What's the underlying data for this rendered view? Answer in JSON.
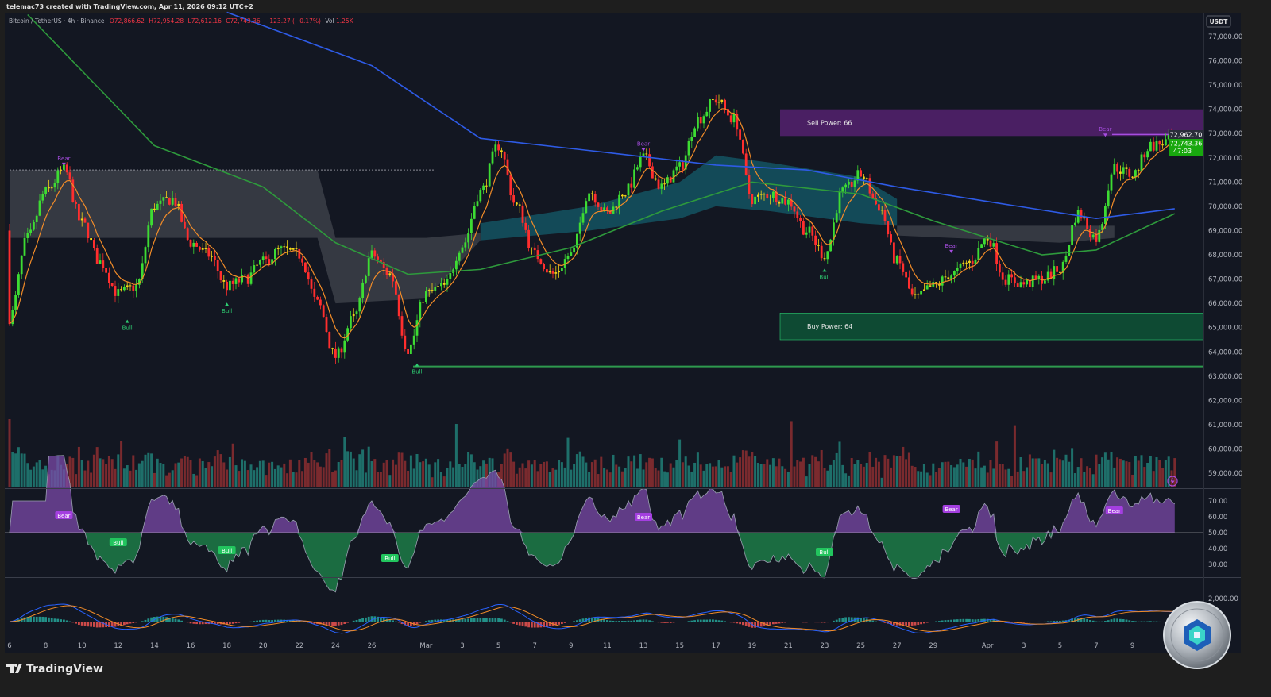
{
  "header": {
    "credit": "telemac73 created with TradingView.com, Apr 11, 2026 09:12 UTC+2",
    "symbol": "Bitcoin / TetherUS · 4h · Binance",
    "open": "O72,866.62",
    "high": "H72,954.28",
    "low": "L72,612.16",
    "close": "C72,743.36",
    "change": "−123.27 (−0.17%)",
    "volume_label": "Vol",
    "volume": "1.25K",
    "currency": "USDT"
  },
  "price_tags": {
    "prev": "72,962.70",
    "last": "72,743.36",
    "countdown": "47:03"
  },
  "zones": {
    "sell_label": "Sell Power: 66",
    "buy_label": "Buy Power: 64",
    "sell_color": "#4a1f63",
    "buy_color": "#0e4a33"
  },
  "signals": {
    "bear": "Bear",
    "bull": "Bull"
  },
  "brand": {
    "name": "TradingView"
  },
  "colors": {
    "background": "#131722",
    "up": "#3ddc33",
    "down": "#ff2e2e",
    "neutral": "#f2d417",
    "ema": "#f28c28",
    "ma_blue": "#2e5be6",
    "ma_green": "#2e9a3c",
    "bear": "#a64de0",
    "bull": "#2ecc71"
  },
  "chart_data": [
    {
      "type": "candlestick",
      "title": "Bitcoin / TetherUS · 4h · Binance",
      "ylim": [
        58500,
        77800
      ],
      "yticks": [
        "77,000.00",
        "76,000.00",
        "75,000.00",
        "74,000.00",
        "73,000.00",
        "72,000.00",
        "71,000.00",
        "70,000.00",
        "69,000.00",
        "68,000.00",
        "67,000.00",
        "66,000.00",
        "65,000.00",
        "64,000.00",
        "63,000.00",
        "62,000.00",
        "61,000.00",
        "60,000.00",
        "59,000.00"
      ],
      "xticks": [
        {
          "date": "2026-02-06",
          "label": "6"
        },
        {
          "date": "2026-02-08",
          "label": "8"
        },
        {
          "date": "2026-02-10",
          "label": "10"
        },
        {
          "date": "2026-02-12",
          "label": "12"
        },
        {
          "date": "2026-02-14",
          "label": "14"
        },
        {
          "date": "2026-02-16",
          "label": "16"
        },
        {
          "date": "2026-02-18",
          "label": "18"
        },
        {
          "date": "2026-02-20",
          "label": "20"
        },
        {
          "date": "2026-02-22",
          "label": "22"
        },
        {
          "date": "2026-02-24",
          "label": "24"
        },
        {
          "date": "2026-02-26",
          "label": "26"
        },
        {
          "date": "2026-03-01",
          "label": "Mar"
        },
        {
          "date": "2026-03-03",
          "label": "3"
        },
        {
          "date": "2026-03-05",
          "label": "5"
        },
        {
          "date": "2026-03-07",
          "label": "7"
        },
        {
          "date": "2026-03-09",
          "label": "9"
        },
        {
          "date": "2026-03-11",
          "label": "11"
        },
        {
          "date": "2026-03-13",
          "label": "13"
        },
        {
          "date": "2026-03-15",
          "label": "15"
        },
        {
          "date": "2026-03-17",
          "label": "17"
        },
        {
          "date": "2026-03-19",
          "label": "19"
        },
        {
          "date": "2026-03-21",
          "label": "21"
        },
        {
          "date": "2026-03-23",
          "label": "23"
        },
        {
          "date": "2026-03-25",
          "label": "25"
        },
        {
          "date": "2026-03-27",
          "label": "27"
        },
        {
          "date": "2026-03-29",
          "label": "29"
        },
        {
          "date": "2026-04-01",
          "label": "Apr"
        },
        {
          "date": "2026-04-03",
          "label": "3"
        },
        {
          "date": "2026-04-05",
          "label": "5"
        },
        {
          "date": "2026-04-07",
          "label": "7"
        },
        {
          "date": "2026-04-09",
          "label": "9"
        }
      ],
      "close_series": [
        [
          "2026-02-06",
          65400
        ],
        [
          "2026-02-07",
          68700
        ],
        [
          "2026-02-08",
          70600
        ],
        [
          "2026-02-09",
          71500
        ],
        [
          "2026-02-10",
          69300
        ],
        [
          "2026-02-11",
          67700
        ],
        [
          "2026-02-12",
          66400
        ],
        [
          "2026-02-13",
          66700
        ],
        [
          "2026-02-14",
          70000
        ],
        [
          "2026-02-15",
          70300
        ],
        [
          "2026-02-16",
          68500
        ],
        [
          "2026-02-17",
          68000
        ],
        [
          "2026-02-18",
          66700
        ],
        [
          "2026-02-19",
          67000
        ],
        [
          "2026-02-20",
          67700
        ],
        [
          "2026-02-21",
          68200
        ],
        [
          "2026-02-22",
          68000
        ],
        [
          "2026-02-23",
          66000
        ],
        [
          "2026-02-24",
          63800
        ],
        [
          "2026-02-25",
          65400
        ],
        [
          "2026-02-26",
          68000
        ],
        [
          "2026-02-27",
          67200
        ],
        [
          "2026-02-28",
          64100
        ],
        [
          "2026-03-01",
          66400
        ],
        [
          "2026-03-02",
          66700
        ],
        [
          "2026-03-03",
          68400
        ],
        [
          "2026-03-04",
          70600
        ],
        [
          "2026-03-05",
          72500
        ],
        [
          "2026-03-06",
          70000
        ],
        [
          "2026-03-07",
          68000
        ],
        [
          "2026-03-08",
          67200
        ],
        [
          "2026-03-09",
          68000
        ],
        [
          "2026-03-10",
          70600
        ],
        [
          "2026-03-11",
          69700
        ],
        [
          "2026-03-12",
          70600
        ],
        [
          "2026-03-13",
          72000
        ],
        [
          "2026-03-14",
          70800
        ],
        [
          "2026-03-15",
          71600
        ],
        [
          "2026-03-16",
          73600
        ],
        [
          "2026-03-17",
          74400
        ],
        [
          "2026-03-18",
          73600
        ],
        [
          "2026-03-19",
          70300
        ],
        [
          "2026-03-20",
          70500
        ],
        [
          "2026-03-21",
          70200
        ],
        [
          "2026-03-22",
          69000
        ],
        [
          "2026-03-23",
          68000
        ],
        [
          "2026-03-24",
          70600
        ],
        [
          "2026-03-25",
          71300
        ],
        [
          "2026-03-26",
          70000
        ],
        [
          "2026-03-27",
          67700
        ],
        [
          "2026-03-28",
          66200
        ],
        [
          "2026-03-29",
          66700
        ],
        [
          "2026-03-30",
          67200
        ],
        [
          "2026-03-31",
          67700
        ],
        [
          "2026-04-01",
          68700
        ],
        [
          "2026-04-02",
          67000
        ],
        [
          "2026-04-03",
          66800
        ],
        [
          "2026-04-04",
          67000
        ],
        [
          "2026-04-05",
          67400
        ],
        [
          "2026-04-06",
          69700
        ],
        [
          "2026-04-07",
          68700
        ],
        [
          "2026-04-08",
          71600
        ],
        [
          "2026-04-09",
          71300
        ],
        [
          "2026-04-10",
          72500
        ],
        [
          "2026-04-11T09:00",
          72743.36
        ]
      ],
      "ma_blue": [
        [
          "2026-02-18",
          78000
        ],
        [
          "2026-02-26",
          75800
        ],
        [
          "2026-03-04",
          72800
        ],
        [
          "2026-03-10",
          72300
        ],
        [
          "2026-03-17",
          71700
        ],
        [
          "2026-03-22",
          71500
        ],
        [
          "2026-03-27",
          70800
        ],
        [
          "2026-04-01",
          70200
        ],
        [
          "2026-04-07",
          69500
        ],
        [
          "2026-04-11T08:00",
          69900
        ]
      ],
      "ma_green": [
        [
          "2026-02-07",
          77900
        ],
        [
          "2026-02-14",
          72500
        ],
        [
          "2026-02-20",
          70800
        ],
        [
          "2026-02-24",
          68500
        ],
        [
          "2026-02-28",
          67200
        ],
        [
          "2026-03-04",
          67400
        ],
        [
          "2026-03-09",
          68300
        ],
        [
          "2026-03-14",
          69800
        ],
        [
          "2026-03-19",
          71000
        ],
        [
          "2026-03-25",
          70500
        ],
        [
          "2026-03-29",
          69400
        ],
        [
          "2026-04-04",
          68000
        ],
        [
          "2026-04-07",
          68200
        ],
        [
          "2026-04-11T08:00",
          69700
        ]
      ],
      "clouds": [
        {
          "color": "#3a3d46",
          "points": [
            [
              "2026-02-06",
              71500,
              68700
            ],
            [
              "2026-02-23",
              71500,
              68700
            ],
            [
              "2026-02-24",
              68700,
              66000
            ],
            [
              "2026-03-01",
              68700,
              66200
            ],
            [
              "2026-03-04",
              68900,
              68600
            ]
          ]
        },
        {
          "color": "#14505e",
          "points": [
            [
              "2026-03-04",
              69300,
              68600
            ],
            [
              "2026-03-10",
              70000,
              69000
            ],
            [
              "2026-03-15",
              71000,
              69500
            ],
            [
              "2026-03-17",
              72100,
              70000
            ],
            [
              "2026-03-20",
              71800,
              69800
            ],
            [
              "2026-03-25",
              71200,
              69300
            ],
            [
              "2026-03-27",
              70300,
              69200
            ]
          ]
        },
        {
          "color": "#3a3d46",
          "points": [
            [
              "2026-03-27",
              69200,
              68800
            ],
            [
              "2026-04-05",
              69200,
              68500
            ],
            [
              "2026-04-08",
              69200,
              68700
            ]
          ]
        }
      ],
      "sell_zone": [
        72900,
        74000
      ],
      "buy_zone": [
        64500,
        65600
      ],
      "support_level": 63400,
      "resistance_level": 72962.7,
      "signal_labels": [
        {
          "type": "bear",
          "date": "2026-02-09",
          "price": 71800
        },
        {
          "type": "bear",
          "date": "2026-03-13",
          "price": 72400
        },
        {
          "type": "bear",
          "date": "2026-03-30",
          "price": 68200
        },
        {
          "type": "bear",
          "date": "2026-04-07T12:00",
          "price": 73000
        },
        {
          "type": "bull",
          "date": "2026-02-12T12:00",
          "price": 65200
        },
        {
          "type": "bull",
          "date": "2026-02-18",
          "price": 65900
        },
        {
          "type": "bull",
          "date": "2026-02-28T12:00",
          "price": 63400
        },
        {
          "type": "bull",
          "date": "2026-03-23",
          "price": 67300
        }
      ]
    },
    {
      "type": "area",
      "title": "RSI",
      "ylim": [
        25,
        75
      ],
      "yticks": [
        "70.00",
        "60.00",
        "50.00",
        "40.00",
        "30.00"
      ],
      "baseline": 50,
      "labels": [
        {
          "type": "bear",
          "date": "2026-02-09",
          "value": 61
        },
        {
          "type": "bull",
          "date": "2026-02-12",
          "value": 44
        },
        {
          "type": "bull",
          "date": "2026-02-18",
          "value": 39
        },
        {
          "type": "bull",
          "date": "2026-02-27",
          "value": 34
        },
        {
          "type": "bear",
          "date": "2026-03-13",
          "value": 60
        },
        {
          "type": "bull",
          "date": "2026-03-23",
          "value": 38
        },
        {
          "type": "bear",
          "date": "2026-03-30",
          "value": 65
        },
        {
          "type": "bear",
          "date": "2026-04-08",
          "value": 64
        }
      ]
    },
    {
      "type": "bar",
      "title": "MACD",
      "yticks": [
        "2,000.00",
        "0.00"
      ]
    }
  ]
}
